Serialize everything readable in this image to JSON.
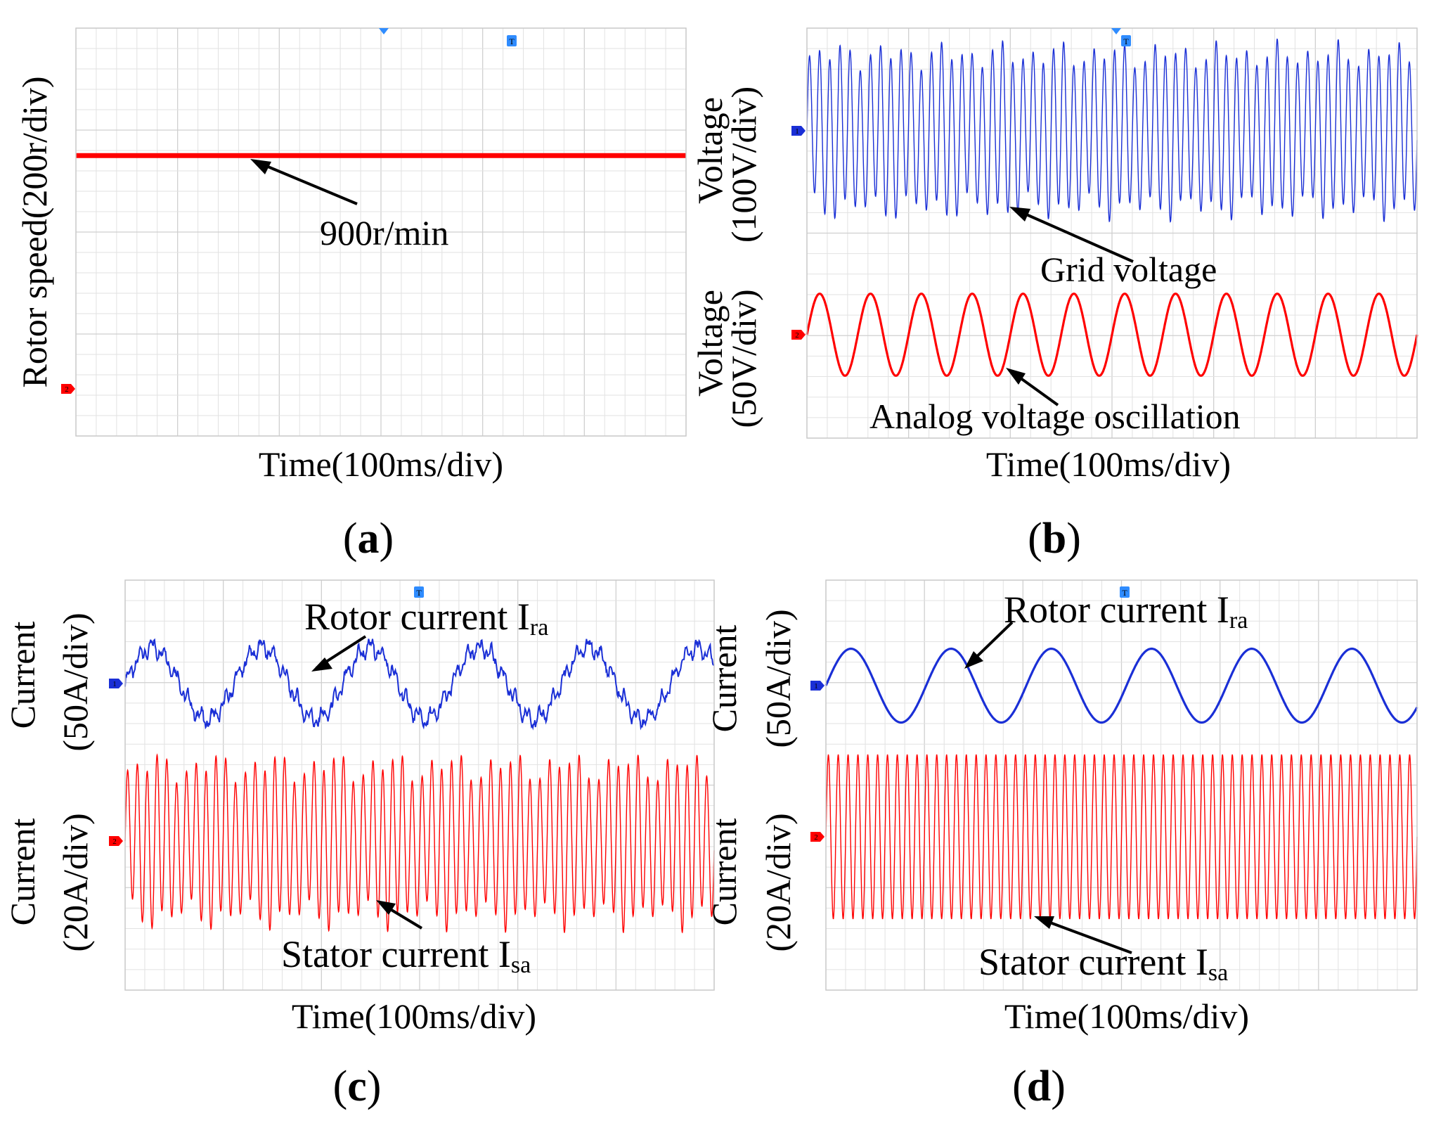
{
  "chart_data": [
    {
      "id": "a",
      "type": "line",
      "panel_label": "a",
      "xlabel": "Time(100ms/div)",
      "ylabel": "Rotor speed(200r/div)",
      "x_divisions": 6,
      "y_divisions": 4,
      "series": [
        {
          "name": "Rotor speed",
          "channel": "2",
          "color": "#ff0000",
          "kind": "flat",
          "level_div": 2.75
        }
      ],
      "annotations": [
        {
          "text": "900r/min"
        }
      ],
      "markers": [
        "T",
        "2"
      ]
    },
    {
      "id": "b",
      "type": "line",
      "panel_label": "b",
      "xlabel": "Time(100ms/div)",
      "ylabels": [
        {
          "line1": "Voltage",
          "line2": "(100V/div)"
        },
        {
          "line1": "Voltage",
          "line2": "(50V/div)"
        }
      ],
      "x_divisions": 6,
      "y_divisions": 4,
      "series": [
        {
          "name": "Grid voltage",
          "channel": "1",
          "color": "#1a2fd6",
          "kind": "beat",
          "cycles": 60,
          "beat_cycles": 11,
          "amp_div": 0.8,
          "beat_depth": 0.15
        },
        {
          "name": "Analog voltage oscillation",
          "channel": "2",
          "color": "#ff0000",
          "kind": "sine",
          "cycles": 12,
          "amp_div": 0.4
        }
      ],
      "annotations": [
        {
          "text": "Grid voltage"
        },
        {
          "text": "Analog voltage oscillation"
        }
      ],
      "markers": [
        "T",
        "1",
        "2"
      ]
    },
    {
      "id": "c",
      "type": "line",
      "panel_label": "c",
      "xlabel": "Time(100ms/div)",
      "ylabels": [
        {
          "line1": "Current",
          "line2": "(50A/div)"
        },
        {
          "line1": "Current",
          "line2": "(20A/div)"
        }
      ],
      "x_divisions": 6,
      "y_divisions": 4,
      "series": [
        {
          "name": "Rotor current",
          "subscript": "ra",
          "channel": "1",
          "color": "#1a2fd6",
          "kind": "distorted_sine",
          "cycles": 5.4,
          "amp_div": 0.35
        },
        {
          "name": "Stator current",
          "subscript": "sa",
          "channel": "2",
          "color": "#ff0000",
          "kind": "beat",
          "cycles": 60,
          "beat_cycles": 10,
          "amp_div": 0.8,
          "beat_depth": 0.2
        }
      ],
      "annotations": [
        {
          "text": "Rotor current I",
          "sub": "ra"
        },
        {
          "text": "Stator current I",
          "sub": "sa"
        }
      ],
      "markers": [
        "T",
        "1",
        "2"
      ]
    },
    {
      "id": "d",
      "type": "line",
      "panel_label": "d",
      "xlabel": "Time(100ms/div)",
      "ylabels": [
        {
          "line1": "Current",
          "line2": "(50A/div)"
        },
        {
          "line1": "Current",
          "line2": "(20A/div)"
        }
      ],
      "x_divisions": 6,
      "y_divisions": 4,
      "series": [
        {
          "name": "Rotor current",
          "subscript": "ra",
          "channel": "1",
          "color": "#1a2fd6",
          "kind": "sine",
          "cycles": 5.9,
          "amp_div": 0.36
        },
        {
          "name": "Stator current",
          "subscript": "sa",
          "channel": "2",
          "color": "#ff0000",
          "kind": "sine",
          "cycles": 60,
          "amp_div": 0.8
        }
      ],
      "annotations": [
        {
          "text": "Rotor current I",
          "sub": "ra"
        },
        {
          "text": "Stator current I",
          "sub": "sa"
        }
      ],
      "markers": [
        "T",
        "1",
        "2"
      ]
    }
  ]
}
